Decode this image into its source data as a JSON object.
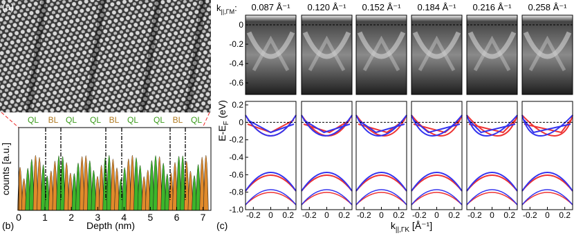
{
  "panel_a": {
    "label": "(a)"
  },
  "panel_b": {
    "label": "(b)",
    "x_label": "Depth (nm)",
    "y_label": "counts [a.u.]",
    "xlim": [
      0,
      7.3
    ],
    "xticks": [
      0,
      1,
      2,
      3,
      4,
      5,
      6,
      7
    ],
    "layers": [
      "QL",
      "BL",
      "QL",
      "QL",
      "BL",
      "QL",
      "QL",
      "BL",
      "QL"
    ]
  },
  "panel_c": {
    "label": "(c)",
    "k_symbol": "k",
    "k_subscript": "||,ΓM",
    "k_colon": ":",
    "momenta": [
      "0.087 Å⁻¹",
      "0.120 Å⁻¹",
      "0.152 Å⁻¹",
      "0.184 Å⁻¹",
      "0.216 Å⁻¹",
      "0.258 Å⁻¹"
    ],
    "y_label": "E-E",
    "y_label_sub": "F",
    "y_label_unit": " (eV)",
    "x_label": "k",
    "x_label_sub": "||,ΓK",
    "x_label_unit": " [Å⁻¹]",
    "xlim": [
      -0.29,
      0.29
    ],
    "xticks": [
      -0.2,
      0,
      0.2
    ],
    "arpes_ylim": [
      -0.72,
      0.1
    ],
    "arpes_yticks": [
      0,
      -0.2,
      -0.4,
      -0.6
    ],
    "band_ylim": [
      -1,
      0.24
    ],
    "band_yticks": [
      0.2,
      0,
      -0.2,
      -0.4,
      -0.6,
      -0.8,
      {
        "value": -1,
        "label": "-1.0"
      }
    ]
  }
}
